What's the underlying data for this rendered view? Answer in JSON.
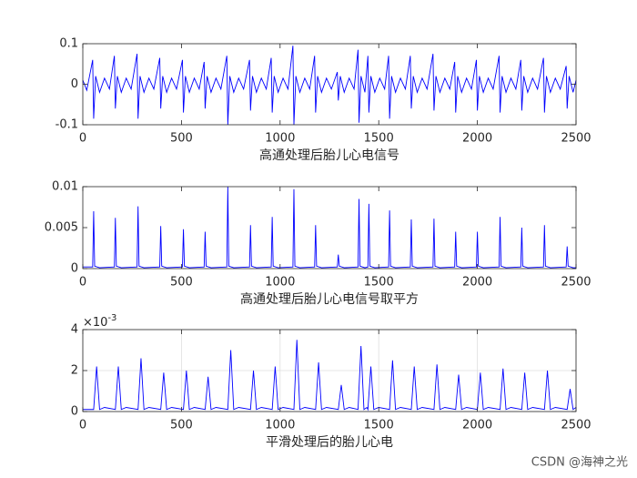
{
  "chart_data": [
    {
      "type": "line",
      "xlabel": "高通处理后胎儿心电信号",
      "color": "#0000ff",
      "xlim": [
        0,
        2500
      ],
      "xticks": [
        0,
        500,
        1000,
        1500,
        2000,
        2500
      ],
      "ylim": [
        -0.1,
        0.1
      ],
      "yticks": [
        -0.1,
        0,
        0.1
      ],
      "grid": false,
      "x": [
        0,
        20,
        50,
        55,
        65,
        85,
        110,
        135,
        160,
        165,
        175,
        195,
        220,
        245,
        275,
        280,
        290,
        310,
        335,
        360,
        390,
        395,
        405,
        425,
        450,
        475,
        505,
        510,
        520,
        540,
        565,
        590,
        615,
        620,
        630,
        650,
        675,
        700,
        730,
        735,
        745,
        765,
        790,
        815,
        845,
        850,
        860,
        880,
        905,
        930,
        955,
        960,
        970,
        990,
        1015,
        1040,
        1065,
        1070,
        1080,
        1100,
        1125,
        1150,
        1175,
        1180,
        1190,
        1210,
        1235,
        1260,
        1290,
        1295,
        1305,
        1325,
        1350,
        1375,
        1395,
        1400,
        1410,
        1430,
        1445,
        1450,
        1460,
        1480,
        1505,
        1530,
        1550,
        1555,
        1565,
        1585,
        1610,
        1635,
        1660,
        1665,
        1675,
        1695,
        1720,
        1745,
        1775,
        1780,
        1790,
        1810,
        1835,
        1860,
        1885,
        1890,
        1900,
        1920,
        1945,
        1970,
        1995,
        2000,
        2010,
        2030,
        2055,
        2080,
        2110,
        2115,
        2125,
        2145,
        2170,
        2195,
        2220,
        2225,
        2235,
        2255,
        2280,
        2305,
        2335,
        2340,
        2350,
        2370,
        2395,
        2420,
        2450,
        2455,
        2465,
        2485,
        2500
      ],
      "values": [
        0.01,
        -0.015,
        0.06,
        -0.085,
        0.02,
        -0.02,
        0.015,
        -0.012,
        0.07,
        -0.06,
        0.02,
        -0.02,
        0.015,
        -0.012,
        0.075,
        -0.085,
        0.02,
        -0.02,
        0.015,
        -0.012,
        0.065,
        -0.06,
        0.02,
        -0.02,
        0.015,
        -0.012,
        0.06,
        -0.07,
        0.02,
        -0.02,
        0.015,
        -0.012,
        0.055,
        -0.06,
        0.02,
        -0.02,
        0.015,
        -0.012,
        0.07,
        -0.1,
        0.02,
        -0.02,
        0.015,
        -0.012,
        0.06,
        -0.065,
        0.02,
        -0.02,
        0.015,
        -0.012,
        0.065,
        -0.07,
        0.02,
        -0.02,
        0.015,
        -0.012,
        0.095,
        -0.1,
        0.02,
        -0.02,
        0.015,
        -0.012,
        0.07,
        -0.07,
        0.02,
        -0.02,
        0.015,
        -0.012,
        0.03,
        -0.04,
        0.02,
        -0.02,
        0.015,
        -0.012,
        0.085,
        -0.095,
        0.02,
        -0.02,
        0.07,
        -0.07,
        0.02,
        -0.02,
        0.015,
        -0.012,
        0.07,
        -0.085,
        0.02,
        -0.02,
        0.015,
        -0.012,
        0.07,
        -0.06,
        0.02,
        -0.02,
        0.015,
        -0.012,
        0.075,
        -0.065,
        0.02,
        -0.02,
        0.015,
        -0.012,
        0.055,
        -0.07,
        0.02,
        -0.02,
        0.015,
        -0.012,
        0.06,
        -0.065,
        0.02,
        -0.02,
        0.015,
        -0.012,
        0.07,
        -0.07,
        0.02,
        -0.02,
        0.015,
        -0.012,
        0.06,
        -0.065,
        0.02,
        -0.02,
        0.015,
        -0.012,
        0.065,
        -0.07,
        0.02,
        -0.02,
        0.015,
        -0.012,
        0.045,
        -0.06,
        0.02,
        -0.02,
        0.01
      ]
    },
    {
      "type": "line",
      "xlabel": "高通处理后胎儿心电信号取平方",
      "color": "#0000ff",
      "xlim": [
        0,
        2500
      ],
      "xticks": [
        0,
        500,
        1000,
        1500,
        2000,
        2500
      ],
      "ylim": [
        0,
        0.01
      ],
      "yticks": [
        0,
        0.005,
        0.01
      ],
      "grid": false,
      "x": [
        0,
        50,
        55,
        60,
        85,
        160,
        165,
        170,
        195,
        275,
        280,
        285,
        310,
        390,
        395,
        400,
        425,
        505,
        510,
        515,
        540,
        615,
        620,
        625,
        650,
        730,
        735,
        740,
        765,
        845,
        850,
        855,
        880,
        955,
        960,
        965,
        990,
        1065,
        1070,
        1075,
        1100,
        1175,
        1180,
        1185,
        1210,
        1290,
        1295,
        1300,
        1325,
        1395,
        1400,
        1405,
        1430,
        1445,
        1450,
        1455,
        1480,
        1550,
        1555,
        1560,
        1585,
        1660,
        1665,
        1670,
        1695,
        1775,
        1780,
        1785,
        1810,
        1885,
        1890,
        1895,
        1920,
        1995,
        2000,
        2005,
        2030,
        2110,
        2115,
        2120,
        2145,
        2220,
        2225,
        2230,
        2255,
        2335,
        2340,
        2345,
        2370,
        2450,
        2455,
        2460,
        2485,
        2500
      ],
      "values": [
        0.0002,
        0.0002,
        0.007,
        0.0003,
        0.0001,
        0.0002,
        0.0062,
        0.0003,
        0.0001,
        0.0002,
        0.0076,
        0.0003,
        0.0001,
        0.0002,
        0.0052,
        0.0003,
        0.0001,
        0.0002,
        0.0048,
        0.0003,
        0.0001,
        0.0002,
        0.0045,
        0.0003,
        0.0001,
        0.0002,
        0.01,
        0.0003,
        0.0001,
        0.0002,
        0.0053,
        0.0003,
        0.0001,
        0.0002,
        0.0063,
        0.0003,
        0.0001,
        0.0002,
        0.0097,
        0.0003,
        0.0001,
        0.0002,
        0.0053,
        0.0003,
        0.0001,
        0.0002,
        0.0017,
        0.0003,
        0.0001,
        0.0002,
        0.0085,
        0.0003,
        0.0001,
        0.0002,
        0.0079,
        0.0003,
        0.0001,
        0.0002,
        0.0071,
        0.0003,
        0.0001,
        0.0002,
        0.006,
        0.0003,
        0.0001,
        0.0002,
        0.0061,
        0.0003,
        0.0001,
        0.0002,
        0.0045,
        0.0003,
        0.0001,
        0.0002,
        0.0045,
        0.0003,
        0.0001,
        0.0002,
        0.0063,
        0.0003,
        0.0001,
        0.0002,
        0.005,
        0.0003,
        0.0001,
        0.0002,
        0.0053,
        0.0003,
        0.0001,
        0.0002,
        0.0027,
        0.0003,
        0.0001,
        0.0001
      ]
    },
    {
      "type": "line",
      "xlabel": "平滑处理后的胎儿心电",
      "color": "#0000ff",
      "xlim": [
        0,
        2500
      ],
      "xticks": [
        0,
        500,
        1000,
        1500,
        2000,
        2500
      ],
      "ylim": [
        0,
        0.004
      ],
      "yticks": [
        0,
        {
          "value": 0.002,
          "label": "2"
        },
        {
          "value": 0.004,
          "label": "4"
        }
      ],
      "grid": true,
      "y_exponent": {
        "base": "×10",
        "power": "-3"
      },
      "x": [
        0,
        55,
        70,
        85,
        110,
        165,
        180,
        195,
        220,
        280,
        295,
        310,
        335,
        395,
        410,
        425,
        450,
        510,
        525,
        540,
        565,
        620,
        635,
        650,
        675,
        735,
        750,
        765,
        790,
        850,
        865,
        880,
        905,
        960,
        975,
        990,
        1015,
        1070,
        1085,
        1100,
        1125,
        1180,
        1195,
        1210,
        1235,
        1295,
        1310,
        1325,
        1350,
        1395,
        1410,
        1425,
        1440,
        1445,
        1460,
        1475,
        1500,
        1555,
        1570,
        1585,
        1610,
        1665,
        1680,
        1695,
        1720,
        1780,
        1795,
        1810,
        1835,
        1890,
        1905,
        1920,
        1945,
        2000,
        2015,
        2030,
        2055,
        2115,
        2130,
        2145,
        2170,
        2225,
        2240,
        2255,
        2280,
        2340,
        2355,
        2370,
        2395,
        2455,
        2470,
        2485,
        2500
      ],
      "values": [
        0.0001,
        0.0001,
        0.0022,
        0.0001,
        0.0002,
        0.0001,
        0.0022,
        0.0001,
        0.0002,
        0.0001,
        0.0026,
        0.0001,
        0.0002,
        0.0001,
        0.0019,
        0.0001,
        0.0002,
        0.0001,
        0.002,
        0.0001,
        0.0002,
        0.0001,
        0.0017,
        0.0001,
        0.0002,
        0.0001,
        0.003,
        0.0001,
        0.0002,
        0.0001,
        0.002,
        0.0001,
        0.0002,
        0.0001,
        0.0022,
        0.0001,
        0.0002,
        0.0001,
        0.0035,
        0.0001,
        0.0002,
        0.0001,
        0.0024,
        0.0001,
        0.0002,
        0.0001,
        0.0013,
        0.0001,
        0.0002,
        0.0001,
        0.0032,
        0.0001,
        0.0002,
        0.0001,
        0.0022,
        0.0001,
        0.0002,
        0.0001,
        0.0025,
        0.0001,
        0.0002,
        0.0001,
        0.0022,
        0.0001,
        0.0002,
        0.0001,
        0.0023,
        0.0001,
        0.0002,
        0.0001,
        0.0018,
        0.0001,
        0.0002,
        0.0001,
        0.0019,
        0.0001,
        0.0002,
        0.0001,
        0.0021,
        0.0001,
        0.0002,
        0.0001,
        0.0019,
        0.0001,
        0.0002,
        0.0001,
        0.002,
        0.0001,
        0.0002,
        0.0001,
        0.0011,
        0.0001,
        0.0002
      ]
    }
  ],
  "watermark": "CSDN @海神之光"
}
